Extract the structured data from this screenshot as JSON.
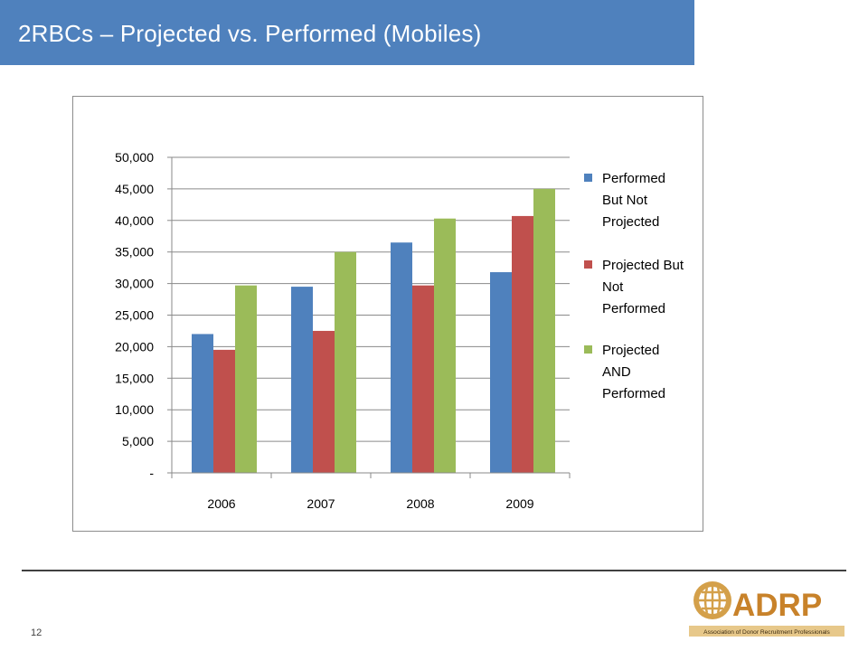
{
  "slide": {
    "title": "2RBCs – Projected vs. Performed (Mobiles)",
    "page_number": "12"
  },
  "logo": {
    "text": "ADRP",
    "tagline": "Association of Donor Recruitment Professionals",
    "icon": "globe-icon"
  },
  "colors": {
    "title_bar": "#4f81bd",
    "series": [
      "#4f81bd",
      "#c0504d",
      "#9bbb59"
    ]
  },
  "chart_data": {
    "type": "bar",
    "categories": [
      "2006",
      "2007",
      "2008",
      "2009"
    ],
    "series": [
      {
        "name": "Performed But Not Projected",
        "values": [
          22000,
          29500,
          36500,
          31800
        ]
      },
      {
        "name": "Projected But Not Performed",
        "values": [
          19500,
          22500,
          29700,
          40700
        ]
      },
      {
        "name": "Projected AND Performed",
        "values": [
          29700,
          35000,
          40300,
          45000
        ]
      }
    ],
    "legend_lines": [
      "Performed\nBut Not\nProjected",
      "Projected But\nNot\nPerformed",
      "Projected\nAND\nPerformed"
    ],
    "ylim": [
      0,
      50000
    ],
    "yticks": [
      0,
      5000,
      10000,
      15000,
      20000,
      25000,
      30000,
      35000,
      40000,
      45000,
      50000
    ],
    "ytick_labels": [
      "-",
      "5,000",
      "10,000",
      "15,000",
      "20,000",
      "25,000",
      "30,000",
      "35,000",
      "40,000",
      "45,000",
      "50,000"
    ],
    "grid": true,
    "legend_position": "right"
  }
}
